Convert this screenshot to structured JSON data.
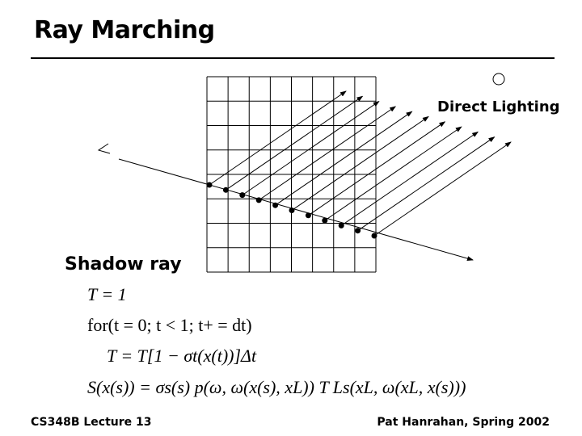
{
  "title": "Ray Marching",
  "diagram": {
    "light_label": "Direct Lighting",
    "grid": {
      "columns": 8,
      "rows": 8
    },
    "sample_count": 11
  },
  "section_label": "Shadow ray",
  "equations": [
    "T = 1",
    "for(t = 0; t < 1; t+ = dt)",
    "T = T[1 − σt(x(t))]Δt",
    "S(x(s)) = σs(s) p(ω, ω(x(s), xL)) T Ls(xL, ω(xL, x(s)))"
  ],
  "footer": {
    "left": "CS348B Lecture 13",
    "right": "Pat Hanrahan, Spring 2002"
  }
}
